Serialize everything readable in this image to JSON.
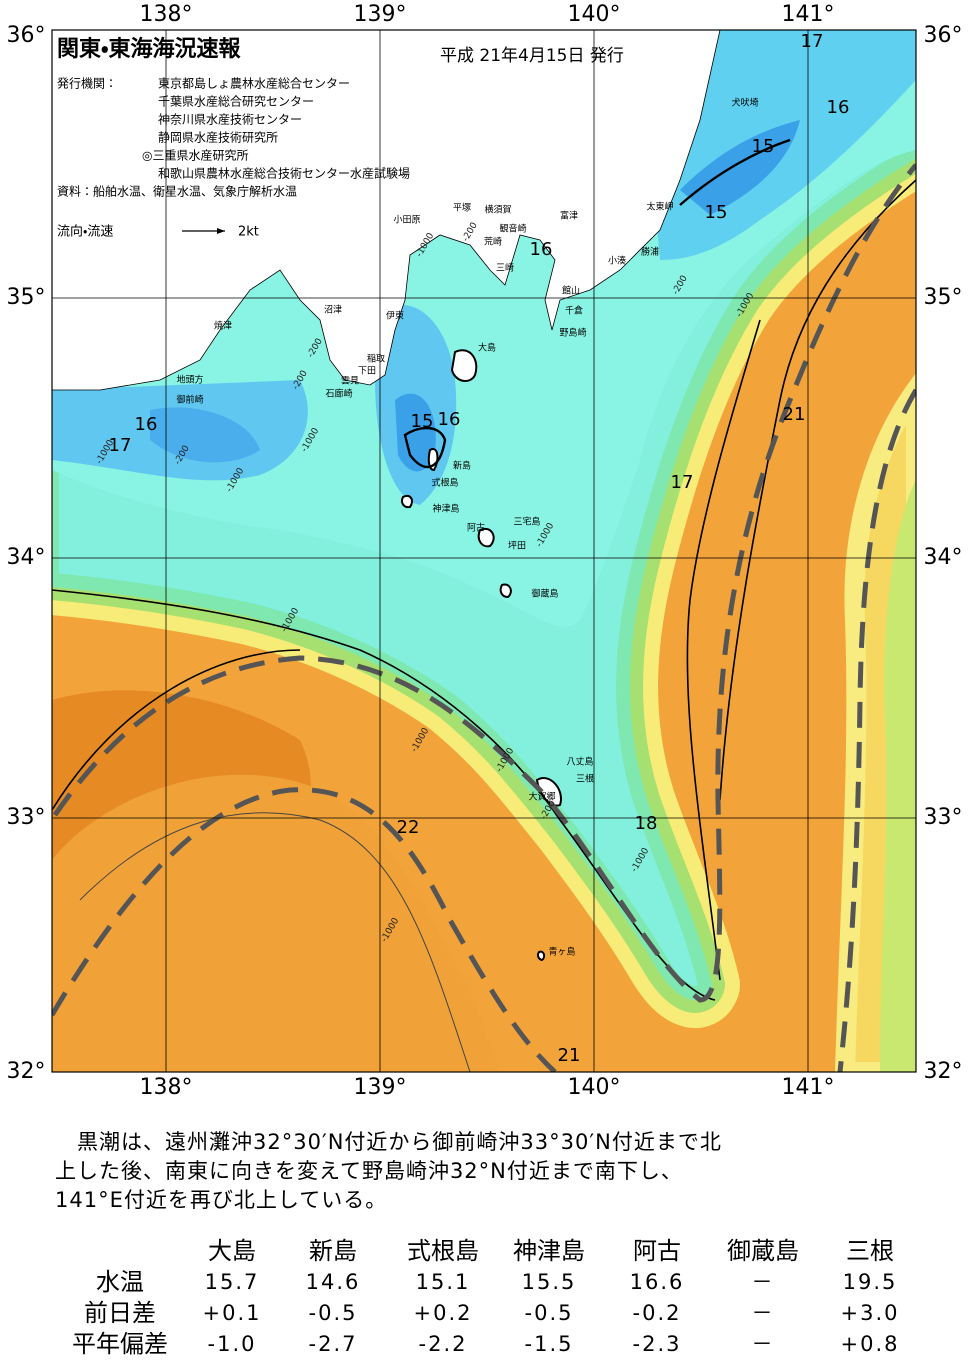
{
  "header": {
    "title": "関東・東海海況速報",
    "date": "平成 21年4月15日 発行"
  },
  "issuers": {
    "label": "発行機関：",
    "list": [
      "東京都島しょ農林水産総合センター",
      "千葉県水産総合研究センター",
      "神奈川県水産技術センター",
      "静岡県水産技術研究所",
      "◎三重県水産研究所",
      "和歌山県農林水産総合技術センター水産試験場"
    ]
  },
  "source": "資料：船舶水温、衛星水温、気象庁解析水温",
  "legend": {
    "label": "流向・流速",
    "speed": "2kt"
  },
  "map": {
    "lon_labels": [
      "138°",
      "139°",
      "140°",
      "141°"
    ],
    "lat_labels": [
      "36°",
      "35°",
      "34°",
      "33°",
      "32°"
    ],
    "places": [
      "犬吠埼",
      "太東岬",
      "勝浦",
      "小湊",
      "富津",
      "横須賀",
      "平塚",
      "観音崎",
      "荒崎",
      "小田原",
      "三崎",
      "館山",
      "千倉",
      "野島崎",
      "沼津",
      "伊東",
      "焼津",
      "稲取",
      "下田",
      "雲見",
      "石廊崎",
      "地頭方",
      "御前崎",
      "大島",
      "新島",
      "式根島",
      "神津島",
      "阿古",
      "三宅島",
      "坪田",
      "御蔵島",
      "八丈島",
      "三根",
      "大賀郷",
      "青ヶ島"
    ],
    "isotherm_labels": [
      17,
      16,
      15,
      15,
      16,
      15,
      16,
      16,
      17,
      17,
      21,
      18,
      22,
      21
    ],
    "depth_labels": [
      -1000,
      -200,
      -200,
      -1000,
      -200,
      -200,
      -1000,
      -1000,
      -200,
      -1000,
      -1000,
      -1000,
      -1000,
      -1000,
      -1000,
      -200,
      -1000
    ]
  },
  "summary": {
    "lines": [
      "　黒潮は、遠州灘沖32°30′N付近から御前崎沖33°30′N付近まで北",
      "上した後、南東に向きを変えて野島崎沖32°N付近まで南下し、",
      "141°E付近を再び北上している。"
    ]
  },
  "table": {
    "columns": [
      "大島",
      "新島",
      "式根島",
      "神津島",
      "阿古",
      "御蔵島",
      "三根"
    ],
    "rows": [
      {
        "label": "水温",
        "values": [
          "15.7",
          "14.6",
          "15.1",
          "15.5",
          "16.6",
          "－",
          "19.5"
        ]
      },
      {
        "label": "前日差",
        "values": [
          "+0.1",
          "-0.5",
          "+0.2",
          "-0.5",
          "-0.2",
          "－",
          "+3.0"
        ]
      },
      {
        "label": "平年偏差",
        "values": [
          "-1.0",
          "-2.7",
          "-2.2",
          "-1.5",
          "-2.3",
          "－",
          "+0.8"
        ]
      }
    ]
  }
}
